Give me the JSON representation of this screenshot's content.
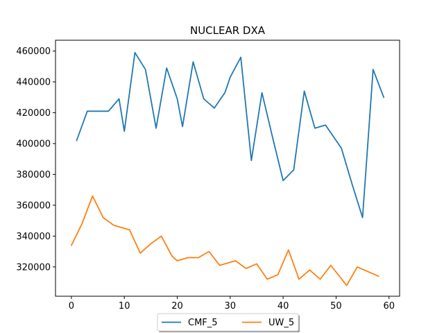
{
  "chart_data": {
    "type": "line",
    "title": "NUCLEAR DXA",
    "xlabel": "",
    "ylabel": "",
    "xlim": [
      -3,
      62
    ],
    "ylim": [
      301000,
      467000
    ],
    "xticks": [
      0,
      10,
      20,
      30,
      40,
      50,
      60
    ],
    "xtick_labels": [
      "0",
      "10",
      "20",
      "30",
      "40",
      "50",
      "60"
    ],
    "yticks": [
      320000,
      340000,
      360000,
      380000,
      400000,
      420000,
      440000,
      460000
    ],
    "ytick_labels": [
      "320000",
      "340000",
      "360000",
      "380000",
      "400000",
      "420000",
      "440000",
      "460000"
    ],
    "grid": false,
    "legend_placement": "bottom-center",
    "series": [
      {
        "name": "CMF_5",
        "color": "#1f77b4",
        "x": [
          1,
          3,
          5,
          7,
          9,
          10,
          12,
          14,
          16,
          18,
          20,
          21,
          23,
          25,
          27,
          29,
          30,
          32,
          34,
          36,
          38,
          40,
          42,
          44,
          46,
          48,
          51,
          53,
          55,
          57,
          59
        ],
        "y": [
          402000,
          421000,
          421000,
          421000,
          429000,
          408000,
          459000,
          448000,
          410000,
          449000,
          429000,
          411000,
          453000,
          429000,
          423000,
          433000,
          443000,
          456000,
          389000,
          433000,
          404000,
          376000,
          383000,
          434000,
          410000,
          412000,
          397000,
          374000,
          352000,
          448000,
          430000
        ]
      },
      {
        "name": "UW_5",
        "color": "#ff7f0e",
        "x": [
          0,
          2,
          4,
          6,
          8,
          11,
          13,
          15,
          17,
          19,
          20,
          22,
          24,
          26,
          28,
          31,
          33,
          35,
          37,
          39,
          41,
          43,
          45,
          47,
          49,
          52,
          54,
          56,
          58
        ],
        "y": [
          334000,
          348000,
          366000,
          352000,
          347000,
          344000,
          329000,
          335000,
          340000,
          327000,
          324000,
          326000,
          326000,
          330000,
          321000,
          324000,
          319000,
          322000,
          312000,
          315000,
          331000,
          312000,
          318000,
          312000,
          321000,
          308000,
          320000,
          317000,
          314000
        ]
      }
    ]
  }
}
